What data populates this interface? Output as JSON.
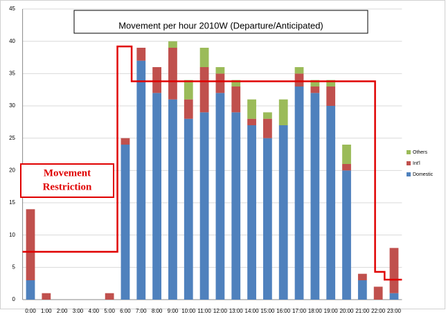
{
  "chart_data": {
    "type": "stacked_bar",
    "title": "Movement per hour 2010W (Departure/Anticipated)",
    "categories": [
      "0:00",
      "1:00",
      "2:00",
      "3:00",
      "4:00",
      "5:00",
      "6:00",
      "7:00",
      "8:00",
      "9:00",
      "10:00",
      "11:00",
      "12:00",
      "13:00",
      "14:00",
      "15:00",
      "16:00",
      "17:00",
      "18:00",
      "19:00",
      "20:00",
      "21:00",
      "22:00",
      "23:00"
    ],
    "series": [
      {
        "name": "Domestic",
        "color": "#4f81bd",
        "values": [
          3,
          0,
          0,
          0,
          0,
          0,
          24,
          37,
          32,
          31,
          28,
          29,
          32,
          29,
          27,
          25,
          27,
          33,
          32,
          30,
          20,
          3,
          0,
          1
        ]
      },
      {
        "name": "Int'l",
        "color": "#c0504d",
        "values": [
          11,
          1,
          0,
          0,
          0,
          1,
          1,
          2,
          4,
          8,
          3,
          7,
          3,
          4,
          1,
          3,
          0,
          2,
          1,
          3,
          1,
          1,
          2,
          7
        ]
      },
      {
        "name": "Others",
        "color": "#9bbb59",
        "values": [
          0,
          0,
          0,
          0,
          0,
          0,
          0,
          0,
          0,
          1,
          3,
          3,
          1,
          1,
          3,
          1,
          4,
          1,
          1,
          1,
          3,
          0,
          0,
          0
        ]
      }
    ],
    "ylim": [
      0,
      45
    ],
    "yticks": [
      0,
      5,
      10,
      15,
      20,
      25,
      30,
      35,
      40,
      45
    ],
    "grid": true,
    "restriction": {
      "label": [
        "Movement",
        "Restriction"
      ],
      "color": "#e00000",
      "x": [
        -0.5,
        5.5,
        5.5,
        6.4,
        6.4,
        21.8,
        21.8,
        22.4,
        22.4,
        23.5
      ],
      "y": [
        7.4,
        7.4,
        39.2,
        39.2,
        33.8,
        33.8,
        4.3,
        4.3,
        3.1,
        3.1
      ]
    }
  }
}
